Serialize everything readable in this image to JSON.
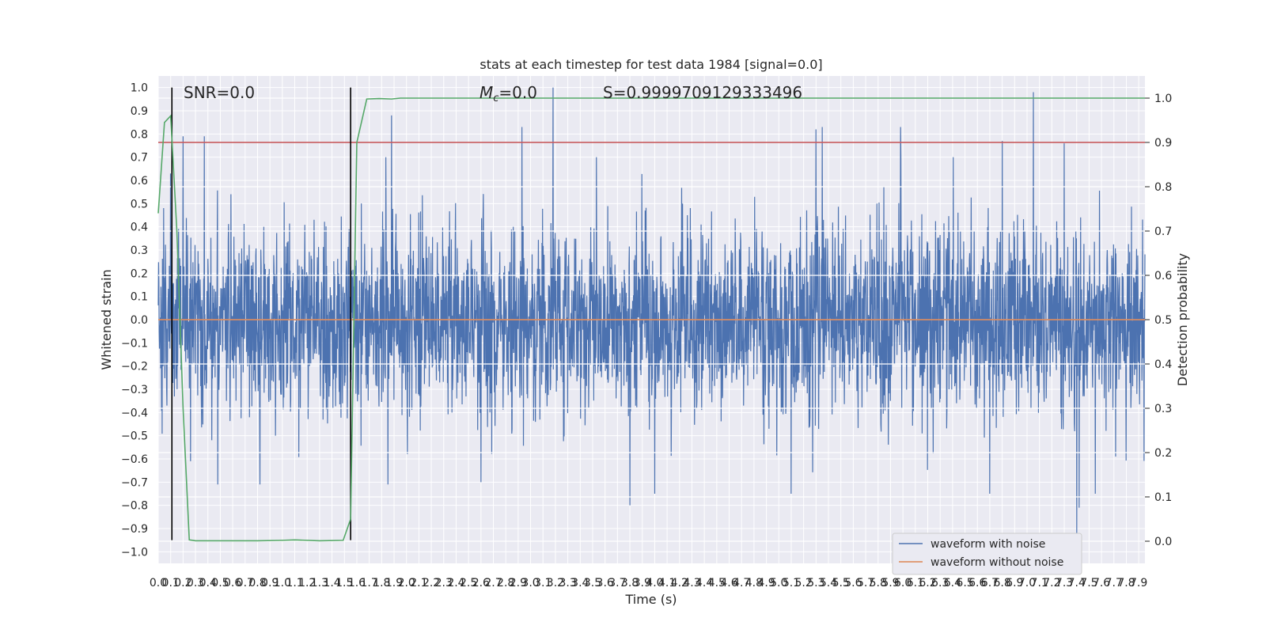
{
  "chart_data": {
    "type": "line",
    "title": "stats at each timestep for test data 1984 [signal=0.0]",
    "xlabel": "Time (s)",
    "ylabel": "Whitened strain",
    "ylabel_right": "Detection probability",
    "xlim": [
      0,
      7.95
    ],
    "ylim": [
      -1.05,
      1.05
    ],
    "ylim_right": [
      -0.05,
      1.05
    ],
    "x_ticks_step": 0.1,
    "y_ticks": [
      -1.0,
      -0.9,
      -0.8,
      -0.7,
      -0.6,
      -0.5,
      -0.4,
      -0.3,
      -0.2,
      -0.1,
      0.0,
      0.1,
      0.2,
      0.3,
      0.4,
      0.5,
      0.6,
      0.7,
      0.8,
      0.9,
      1.0
    ],
    "y_ticks_right": [
      0.0,
      0.1,
      0.2,
      0.3,
      0.4,
      0.5,
      0.6,
      0.7,
      0.8,
      0.9,
      1.0
    ],
    "annotations": {
      "snr": "SNR=0.0",
      "mc_symbol": "M",
      "mc_sub": "c",
      "mc_value": "=0.0",
      "s": "S=0.9999709129333496"
    },
    "vertical_lines_x": [
      0.11,
      1.55
    ],
    "threshold_y": 0.9,
    "series": [
      {
        "name": "waveform with noise",
        "color": "#4c72b0",
        "style": "noise",
        "amplitude_typical": 0.4,
        "peaks": [
          {
            "x": 0.1,
            "y": 0.63
          },
          {
            "x": 0.2,
            "y": 0.79
          },
          {
            "x": 0.37,
            "y": 0.79
          },
          {
            "x": 1.88,
            "y": 0.88
          },
          {
            "x": 2.93,
            "y": 0.83
          },
          {
            "x": 3.18,
            "y": 1.0
          },
          {
            "x": 5.3,
            "y": 0.82
          },
          {
            "x": 5.35,
            "y": 0.83
          },
          {
            "x": 5.98,
            "y": 0.83
          },
          {
            "x": 7.05,
            "y": 0.98
          },
          {
            "x": 6.8,
            "y": 0.77
          },
          {
            "x": 7.3,
            "y": 0.76
          },
          {
            "x": 0.48,
            "y": -0.71
          },
          {
            "x": 0.82,
            "y": -0.71
          },
          {
            "x": 3.8,
            "y": -0.8
          },
          {
            "x": 4.0,
            "y": -0.75
          },
          {
            "x": 5.1,
            "y": -0.75
          },
          {
            "x": 7.4,
            "y": -0.93
          },
          {
            "x": 7.42,
            "y": -0.81
          },
          {
            "x": 6.7,
            "y": -0.75
          },
          {
            "x": 7.55,
            "y": -0.75
          },
          {
            "x": 1.85,
            "y": -0.71
          },
          {
            "x": 2.6,
            "y": -0.7
          },
          {
            "x": 0.26,
            "y": -0.61
          }
        ]
      },
      {
        "name": "waveform without noise",
        "color": "#dd8452",
        "y": 0.0
      },
      {
        "name": "",
        "axis": "right",
        "color": "#55a868",
        "x": [
          0.0,
          0.05,
          0.1,
          0.15,
          0.2,
          0.25,
          0.3,
          0.5,
          0.8,
          1.0,
          1.1,
          1.3,
          1.49,
          1.55,
          1.6,
          1.68,
          1.78,
          1.88,
          1.95,
          2.1,
          7.95
        ],
        "y": [
          0.74,
          0.945,
          0.96,
          0.7,
          0.3,
          0.003,
          0.001,
          0.001,
          0.001,
          0.002,
          0.003,
          0.001,
          0.002,
          0.05,
          0.9,
          0.998,
          0.999,
          0.998,
          1.0,
          1.0,
          1.0
        ]
      },
      {
        "name": "",
        "color": "#c44e52",
        "y": 0.9
      }
    ]
  }
}
